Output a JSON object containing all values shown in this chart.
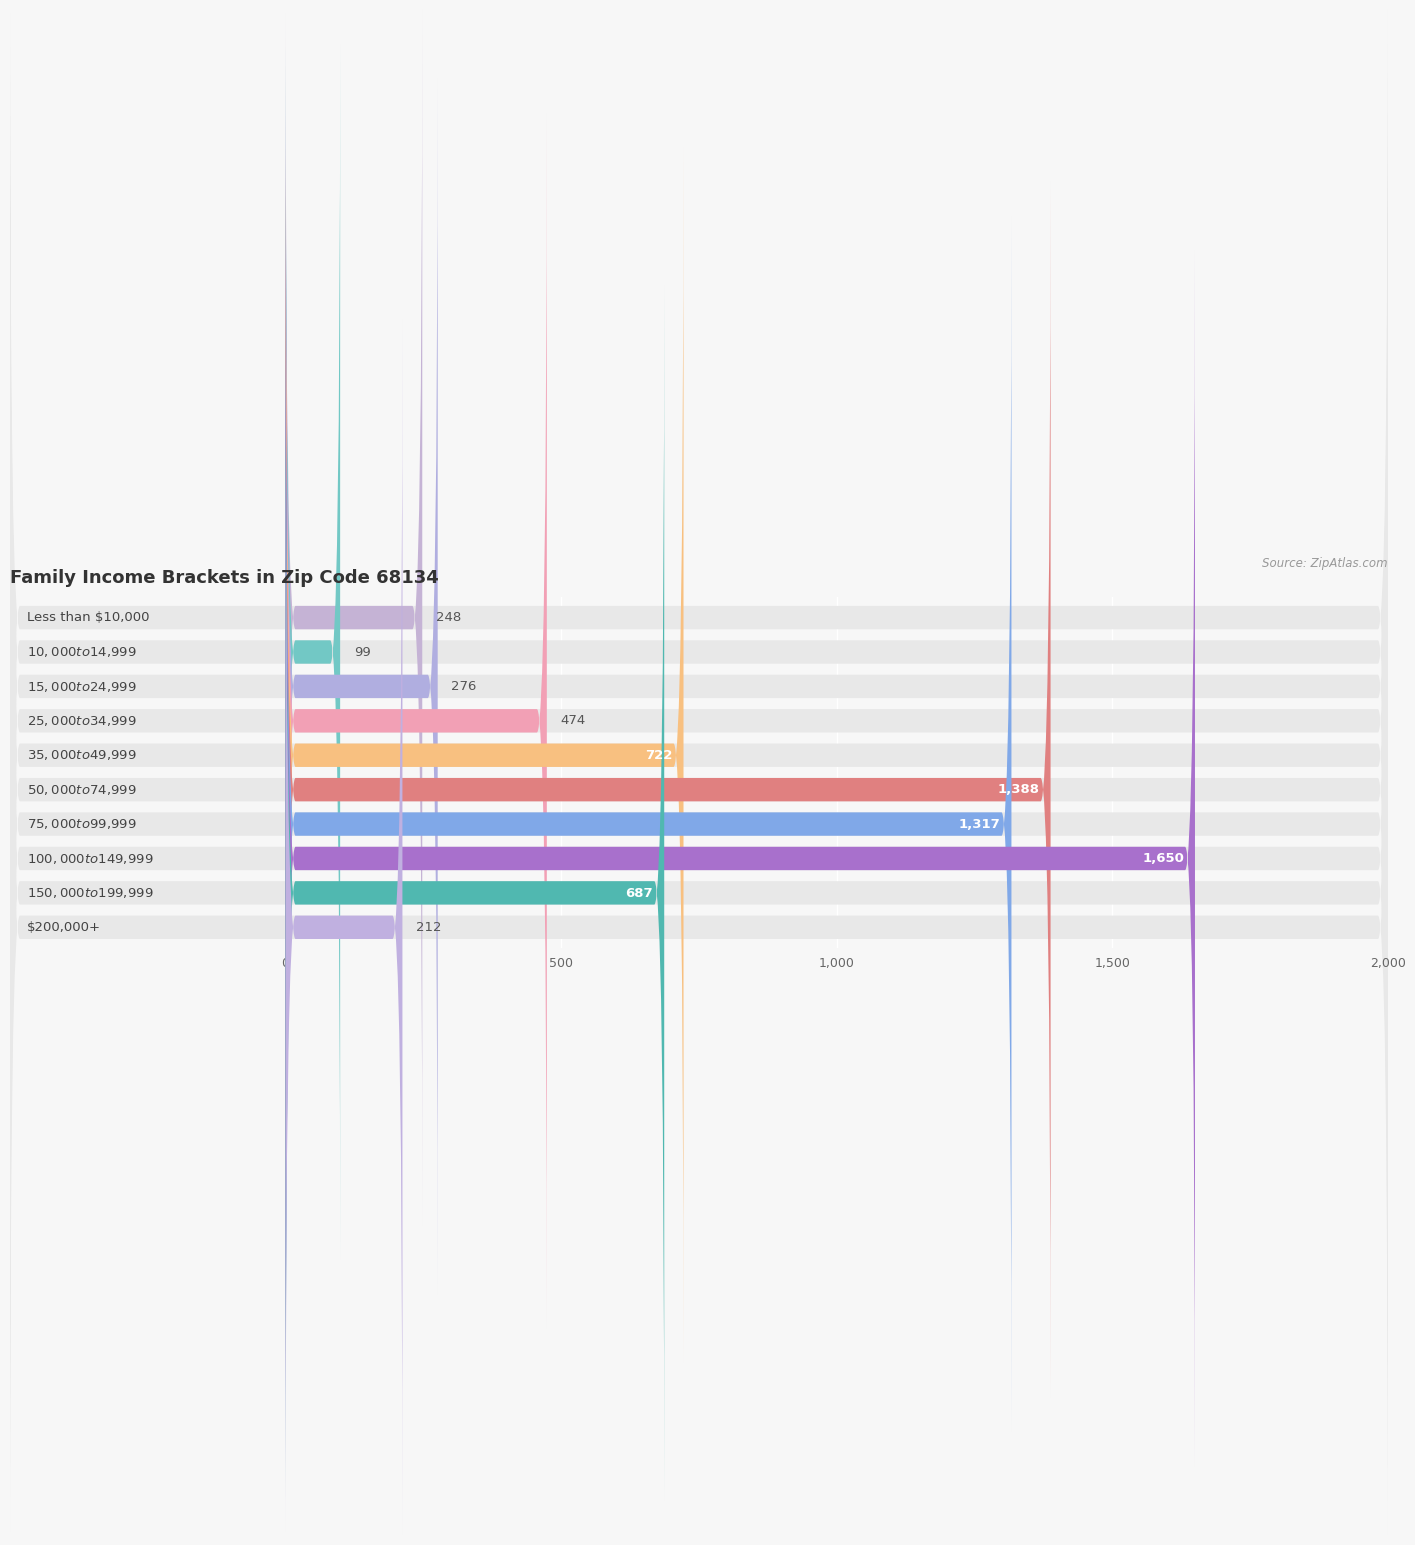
{
  "title": "Family Income Brackets in Zip Code 68134",
  "source": "Source: ZipAtlas.com",
  "categories": [
    "Less than $10,000",
    "$10,000 to $14,999",
    "$15,000 to $24,999",
    "$25,000 to $34,999",
    "$35,000 to $49,999",
    "$50,000 to $74,999",
    "$75,000 to $99,999",
    "$100,000 to $149,999",
    "$150,000 to $199,999",
    "$200,000+"
  ],
  "values": [
    248,
    99,
    276,
    474,
    722,
    1388,
    1317,
    1650,
    687,
    212
  ],
  "bar_colors": [
    "#c5b3d5",
    "#72c8c5",
    "#b0aee0",
    "#f2a0b5",
    "#f8c080",
    "#e08080",
    "#80a8e8",
    "#a870cc",
    "#50b8b0",
    "#c0b0e0"
  ],
  "background_color": "#f7f7f7",
  "bar_bg_color": "#e8e8e8",
  "xlim_data": [
    0,
    2000
  ],
  "x_label_area": -500,
  "title_fontsize": 13,
  "label_fontsize": 9.5,
  "value_fontsize": 9.5,
  "xticks": [
    0,
    500,
    1000,
    1500,
    2000
  ],
  "xtick_labels": [
    "0",
    "500",
    "1,000",
    "1,500",
    "2,000"
  ],
  "value_inside_threshold": 600
}
